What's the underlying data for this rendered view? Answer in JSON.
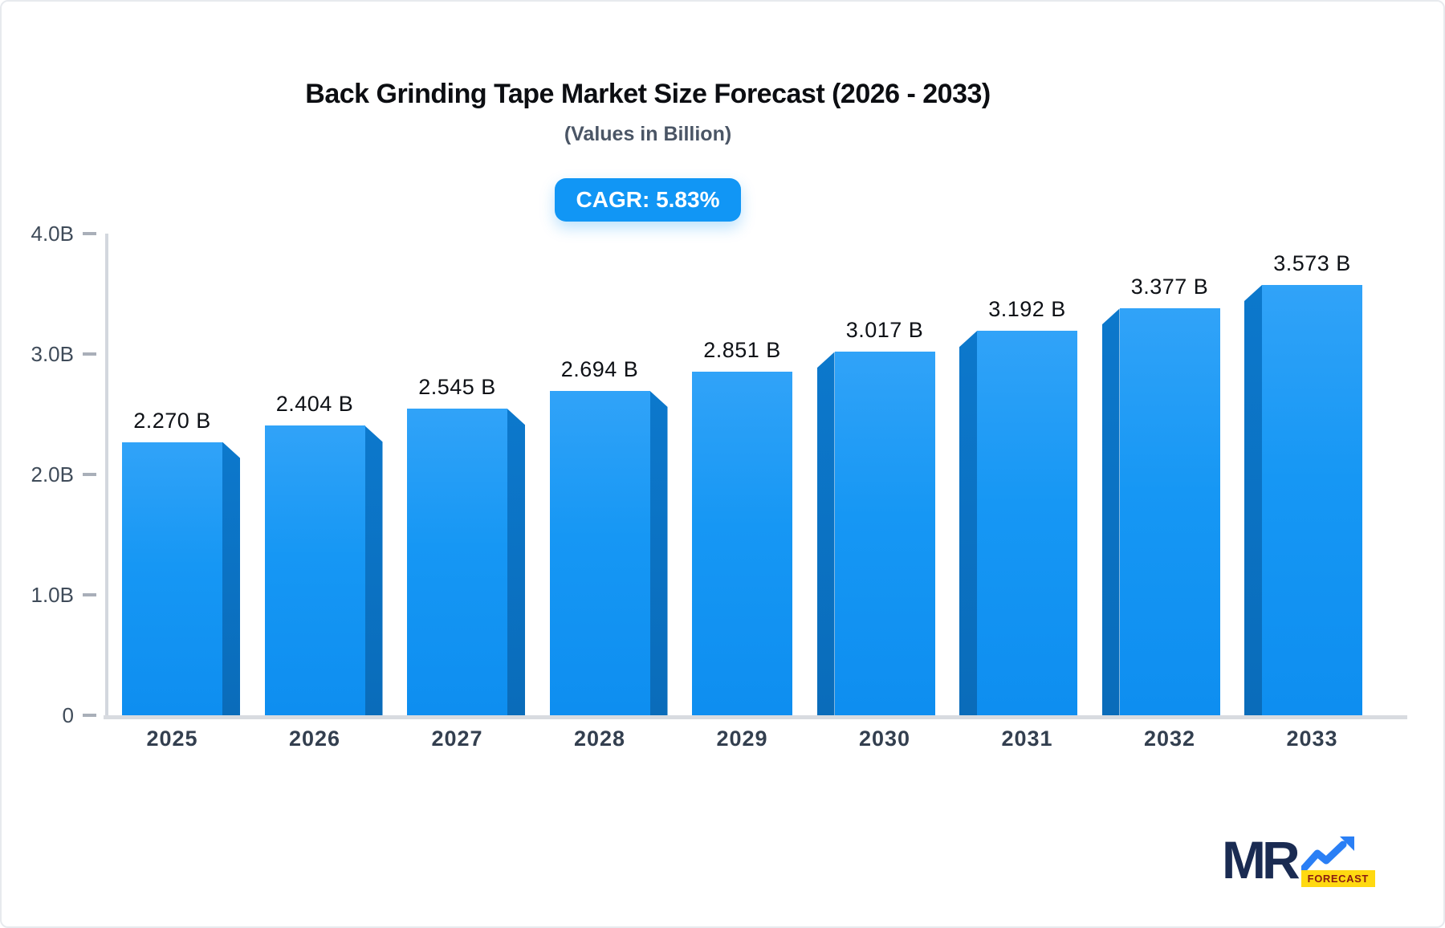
{
  "header": {
    "title": "Back Grinding Tape Market Size Forecast (2026 - 2033)",
    "subtitle": "(Values in Billion)",
    "cagr_badge": "CAGR: 5.83%"
  },
  "chart_data": {
    "type": "bar",
    "title": "Back Grinding Tape Market Size Forecast (2026 - 2033)",
    "subtitle": "(Values in Billion)",
    "cagr_percent": 5.83,
    "categories": [
      "2025",
      "2026",
      "2027",
      "2028",
      "2029",
      "2030",
      "2031",
      "2032",
      "2033"
    ],
    "values": [
      2.27,
      2.404,
      2.545,
      2.694,
      2.851,
      3.017,
      3.192,
      3.377,
      3.573
    ],
    "value_labels": [
      "2.270 B",
      "2.404 B",
      "2.545 B",
      "2.694 B",
      "2.851 B",
      "3.017 B",
      "3.192 B",
      "3.377 B",
      "3.573 B"
    ],
    "y_ticks": [
      {
        "label": "4.0B",
        "value": 4.0
      },
      {
        "label": "3.0B",
        "value": 3.0
      },
      {
        "label": "2.0B",
        "value": 2.0
      },
      {
        "label": "1.0B",
        "value": 1.0
      },
      {
        "label": "0",
        "value": 0.0
      }
    ],
    "ylim": [
      0,
      4
    ],
    "xlabel": "",
    "ylabel": "",
    "grid": false,
    "legend": "none",
    "bar_style": "3d-perspective"
  },
  "colors": {
    "accent_blue": "#1196f5",
    "bar_front_top": "#31a3f8",
    "bar_front_bottom": "#0e8ef0",
    "bar_side": "#0a6fc0",
    "axis_gray": "#d3d7de",
    "tick_gray": "#a9afb9",
    "logo_navy": "#1a2b52",
    "logo_yellow": "#ffd911",
    "logo_tag_text": "#8a1a12"
  },
  "logo": {
    "text": "MR",
    "tag": "FORECAST"
  }
}
